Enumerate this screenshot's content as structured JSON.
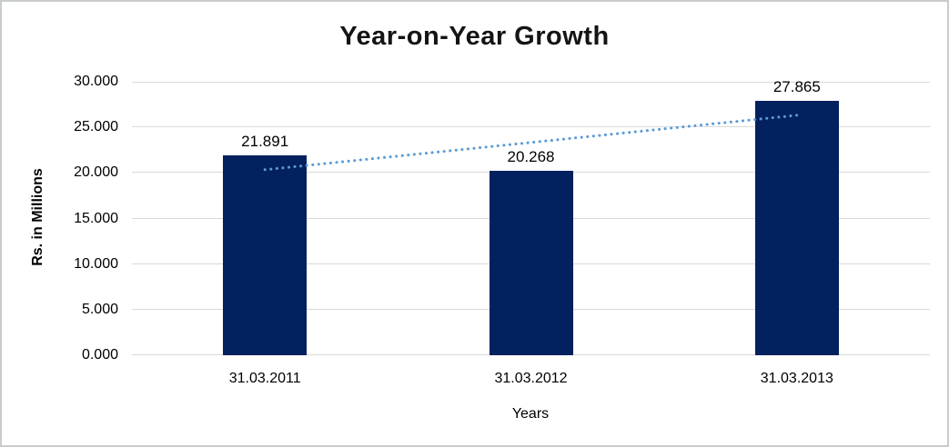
{
  "colors": {
    "bar": "#02215E",
    "trendline": "#5B9BD5",
    "gridline": "#D9D9D9",
    "frame_border": "#C9CCCD",
    "text": "#000000"
  },
  "chart_data": {
    "type": "bar",
    "title": "Year-on-Year Growth",
    "categories": [
      "31.03.2011",
      "31.03.2012",
      "31.03.2013"
    ],
    "values": [
      21.891,
      20.268,
      27.865
    ],
    "value_labels": [
      "21.891",
      "20.268",
      "27.865"
    ],
    "xlabel": "Years",
    "ylabel": "Rs. in Millions",
    "ylim": [
      0,
      30
    ],
    "ytick_step": 5,
    "ytick_labels": [
      "0.000",
      "5.000",
      "10.000",
      "15.000",
      "20.000",
      "25.000",
      "30.000"
    ],
    "grid": true,
    "legend": "none",
    "trendline": {
      "type": "linear",
      "style": "dotted"
    }
  }
}
